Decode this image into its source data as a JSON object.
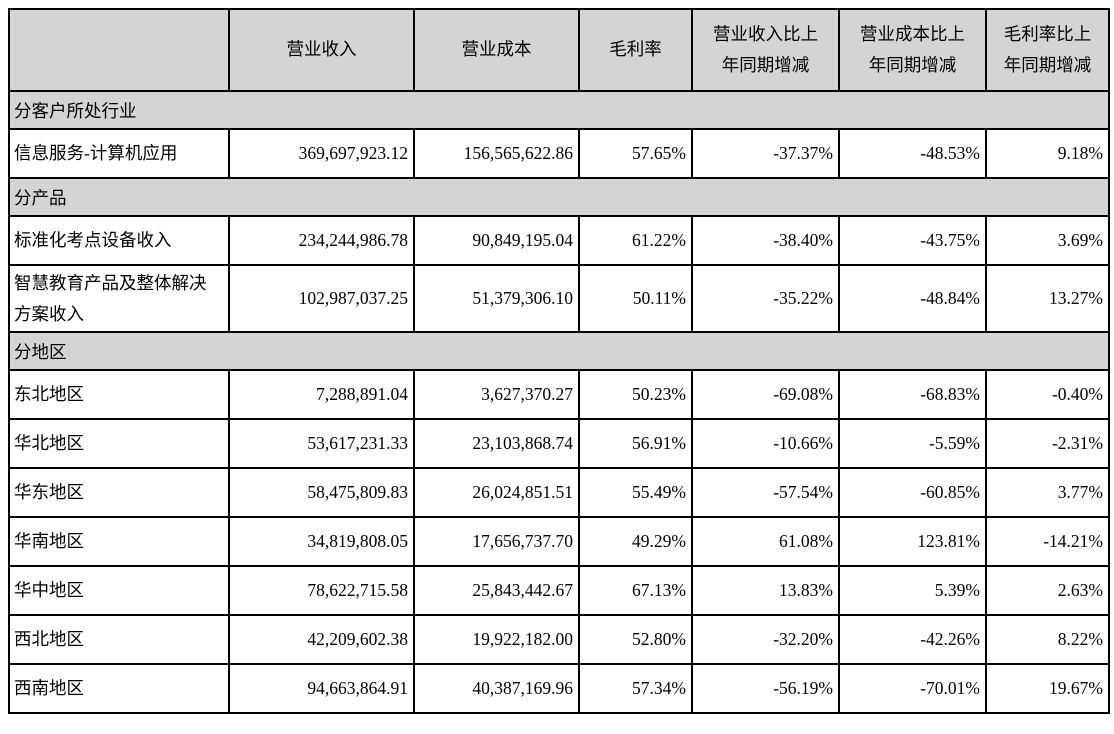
{
  "colors": {
    "header_bg": "#d4d4d4",
    "section_bg": "#d4d4d4",
    "border": "#000000",
    "body_bg": "#ffffff",
    "text": "#000000"
  },
  "table": {
    "columns": [
      {
        "label": ""
      },
      {
        "label": "营业收入"
      },
      {
        "label": "营业成本"
      },
      {
        "label": "毛利率"
      },
      {
        "label": "营业收入比上\n年同期增减"
      },
      {
        "label": "营业成本比上\n年同期增减"
      },
      {
        "label": "毛利率比上\n年同期增减"
      }
    ],
    "sections": [
      {
        "title": "分客户所处行业",
        "rows": [
          {
            "label": "信息服务-计算机应用",
            "values": [
              "369,697,923.12",
              "156,565,622.86",
              "57.65%",
              "-37.37%",
              "-48.53%",
              "9.18%"
            ]
          }
        ]
      },
      {
        "title": "分产品",
        "rows": [
          {
            "label": "标准化考点设备收入",
            "values": [
              "234,244,986.78",
              "90,849,195.04",
              "61.22%",
              "-38.40%",
              "-43.75%",
              "3.69%"
            ]
          },
          {
            "label": "智慧教育产品及整体解决方案收入",
            "values": [
              "102,987,037.25",
              "51,379,306.10",
              "50.11%",
              "-35.22%",
              "-48.84%",
              "13.27%"
            ]
          }
        ]
      },
      {
        "title": "分地区",
        "rows": [
          {
            "label": "东北地区",
            "values": [
              "7,288,891.04",
              "3,627,370.27",
              "50.23%",
              "-69.08%",
              "-68.83%",
              "-0.40%"
            ]
          },
          {
            "label": "华北地区",
            "values": [
              "53,617,231.33",
              "23,103,868.74",
              "56.91%",
              "-10.66%",
              "-5.59%",
              "-2.31%"
            ]
          },
          {
            "label": "华东地区",
            "values": [
              "58,475,809.83",
              "26,024,851.51",
              "55.49%",
              "-57.54%",
              "-60.85%",
              "3.77%"
            ]
          },
          {
            "label": "华南地区",
            "values": [
              "34,819,808.05",
              "17,656,737.70",
              "49.29%",
              "61.08%",
              "123.81%",
              "-14.21%"
            ]
          },
          {
            "label": "华中地区",
            "values": [
              "78,622,715.58",
              "25,843,442.67",
              "67.13%",
              "13.83%",
              "5.39%",
              "2.63%"
            ]
          },
          {
            "label": "西北地区",
            "values": [
              "42,209,602.38",
              "19,922,182.00",
              "52.80%",
              "-32.20%",
              "-42.26%",
              "8.22%"
            ]
          },
          {
            "label": "西南地区",
            "values": [
              "94,663,864.91",
              "40,387,169.96",
              "57.34%",
              "-56.19%",
              "-70.01%",
              "19.67%"
            ]
          }
        ]
      }
    ]
  }
}
